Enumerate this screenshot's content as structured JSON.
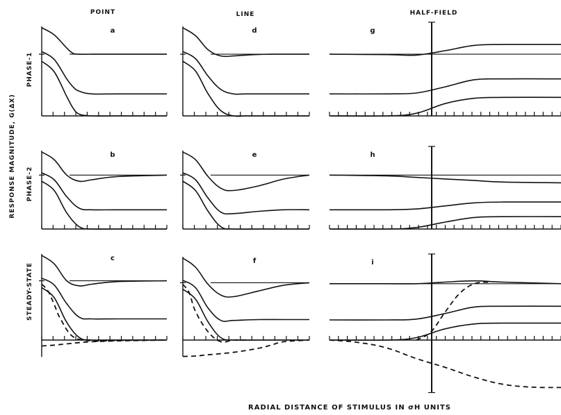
{
  "figure": {
    "ylabel": "RESPONSE MAGNITUDE, G(ΔX)",
    "xlabel": "RADIAL DISTANCE OF STIMULUS IN σH UNITS",
    "columns": [
      "POINT",
      "LINE",
      "HALF-FIELD"
    ],
    "rows": [
      "PHASE-1",
      "PHASE-2",
      "STEADY-STATE"
    ]
  },
  "chart_data": {
    "type": "line",
    "title": "",
    "xlabel": "RADIAL DISTANCE OF STIMULUS IN σH UNITS",
    "ylabel": "RESPONSE MAGNITUDE, G(ΔX)",
    "grid": false,
    "note": "3x3 grid of small-multiple panels (a-i). Each panel: three vertically offset response profiles with a horizontal reference level; tick-marked baseline; unlabeled ticks. Values are relative response magnitudes estimated in panel units (0 = lower baseline). Half-field panels are centred at the stimulus edge (x = 0) with a vertical axis through it.",
    "panels": [
      {
        "letter": "a",
        "row": "PHASE-1",
        "column": "POINT",
        "xlim": [
          0,
          10
        ],
        "ylim": [
          0,
          10
        ],
        "reference_level": 7.0,
        "series": [
          {
            "x": [
              0,
              1,
              2,
              2.5,
              3,
              4,
              6,
              10
            ],
            "y": [
              10,
              9.2,
              7.7,
              7.1,
              7.0,
              7.0,
              7.0,
              7.0
            ]
          },
          {
            "x": [
              0,
              1,
              2,
              2.5,
              3,
              4,
              6,
              10
            ],
            "y": [
              7.3,
              6.4,
              4.2,
              3.3,
              2.8,
              2.5,
              2.5,
              2.5
            ]
          },
          {
            "x": [
              0,
              1,
              2,
              2.5,
              3,
              4,
              6,
              10
            ],
            "y": [
              6.2,
              5.0,
              2.2,
              0.9,
              0.2,
              0,
              0,
              0
            ]
          }
        ]
      },
      {
        "letter": "d",
        "row": "PHASE-1",
        "column": "LINE",
        "xlim": [
          0,
          10
        ],
        "ylim": [
          0,
          10
        ],
        "reference_level": 7.0,
        "series": [
          {
            "x": [
              0,
              1,
              2,
              3,
              4,
              5,
              7,
              10
            ],
            "y": [
              10,
              9.1,
              7.5,
              6.8,
              6.8,
              6.9,
              7.0,
              7.0
            ]
          },
          {
            "x": [
              0,
              1,
              2,
              3,
              4,
              5,
              7,
              10
            ],
            "y": [
              7.3,
              6.5,
              4.5,
              3.0,
              2.5,
              2.5,
              2.5,
              2.5
            ]
          },
          {
            "x": [
              0,
              1,
              2,
              3,
              4,
              5,
              7,
              10
            ],
            "y": [
              6.2,
              5.1,
              2.5,
              0.6,
              0,
              0,
              0,
              0
            ]
          }
        ]
      },
      {
        "letter": "g",
        "row": "PHASE-1",
        "column": "HALF-FIELD",
        "xlim": [
          -8,
          8
        ],
        "ylim": [
          0,
          10
        ],
        "reference_level": 7.0,
        "series": [
          {
            "x": [
              -8,
              -4,
              -2,
              0,
              2,
              4,
              8
            ],
            "y": [
              7.0,
              6.95,
              6.9,
              7.4,
              8.0,
              8.1,
              8.1
            ]
          },
          {
            "x": [
              -8,
              -4,
              -2,
              0,
              2,
              4,
              8
            ],
            "y": [
              2.5,
              2.5,
              2.6,
              3.3,
              4.1,
              4.2,
              4.2
            ]
          },
          {
            "x": [
              -8,
              -4,
              -2,
              0,
              2,
              4,
              8
            ],
            "y": [
              0,
              0,
              0.3,
              1.4,
              2.0,
              2.1,
              2.1
            ]
          }
        ]
      },
      {
        "letter": "b",
        "row": "PHASE-2",
        "column": "POINT",
        "xlim": [
          0,
          10
        ],
        "ylim": [
          0,
          10
        ],
        "reference_level": 7.0,
        "series": [
          {
            "x": [
              0,
              1,
              2,
              3,
              4,
              6,
              10
            ],
            "y": [
              10,
              9.0,
              7.0,
              6.2,
              6.4,
              6.8,
              7.0
            ]
          },
          {
            "x": [
              0,
              1,
              2,
              3,
              4,
              6,
              10
            ],
            "y": [
              7.3,
              6.4,
              4.2,
              2.7,
              2.5,
              2.5,
              2.5
            ]
          },
          {
            "x": [
              0,
              1,
              2,
              3,
              4,
              6,
              10
            ],
            "y": [
              6.2,
              5.0,
              2.1,
              0.3,
              0,
              0,
              0
            ]
          }
        ]
      },
      {
        "letter": "e",
        "row": "PHASE-2",
        "column": "LINE",
        "xlim": [
          0,
          10
        ],
        "ylim": [
          0,
          10
        ],
        "reference_level": 7.0,
        "series": [
          {
            "x": [
              0,
              1,
              2,
              3,
              4,
              6,
              8,
              10
            ],
            "y": [
              10,
              9.0,
              6.8,
              5.3,
              5.0,
              5.6,
              6.5,
              7.0
            ]
          },
          {
            "x": [
              0,
              1,
              2,
              3,
              4,
              6,
              8,
              10
            ],
            "y": [
              7.3,
              6.4,
              4.0,
              2.2,
              2.0,
              2.3,
              2.5,
              2.5
            ]
          },
          {
            "x": [
              0,
              1,
              2,
              3,
              4,
              6,
              8,
              10
            ],
            "y": [
              6.2,
              5.0,
              2.3,
              0.3,
              0,
              0,
              0,
              0
            ]
          }
        ]
      },
      {
        "letter": "h",
        "row": "PHASE-2",
        "column": "HALF-FIELD",
        "xlim": [
          -8,
          8
        ],
        "ylim": [
          0,
          10
        ],
        "reference_level": 7.0,
        "series": [
          {
            "x": [
              -8,
              -4,
              -2,
              0,
              2,
              4,
              8
            ],
            "y": [
              7.0,
              6.9,
              6.7,
              6.5,
              6.3,
              6.1,
              6.0
            ]
          },
          {
            "x": [
              -8,
              -4,
              -2,
              0,
              2,
              4,
              8
            ],
            "y": [
              2.5,
              2.5,
              2.6,
              3.0,
              3.4,
              3.5,
              3.5
            ]
          },
          {
            "x": [
              -8,
              -4,
              -2,
              0,
              2,
              4,
              8
            ],
            "y": [
              0,
              0,
              0.2,
              0.9,
              1.5,
              1.6,
              1.6
            ]
          }
        ]
      },
      {
        "letter": "c",
        "row": "STEADY-STATE",
        "column": "POINT",
        "xlim": [
          0,
          10
        ],
        "ylim": [
          -2,
          10
        ],
        "reference_level": 7.0,
        "series": [
          {
            "x": [
              0,
              1,
              2,
              3,
              4,
              6,
              10
            ],
            "y": [
              10,
              9.0,
              7.0,
              6.4,
              6.6,
              6.9,
              7.0
            ]
          },
          {
            "x": [
              0,
              1,
              2,
              3,
              4,
              6,
              10
            ],
            "y": [
              7.3,
              6.5,
              4.3,
              2.7,
              2.5,
              2.5,
              2.5
            ]
          },
          {
            "x": [
              0,
              1,
              2,
              3,
              4,
              6,
              10
            ],
            "y": [
              6.2,
              5.0,
              2.1,
              0.3,
              0,
              0,
              0
            ]
          }
        ],
        "dashed": [
          {
            "x": [
              0,
              0.5,
              1,
              1.5,
              2.5,
              4,
              6,
              10
            ],
            "y": [
              6.6,
              5.8,
              4.2,
              2.5,
              0.4,
              -0.1,
              -0.05,
              0
            ]
          },
          {
            "x": [
              0,
              1,
              2,
              3,
              4,
              6,
              8,
              10
            ],
            "y": [
              -0.7,
              -0.6,
              -0.45,
              -0.3,
              -0.2,
              -0.1,
              -0.05,
              0
            ]
          }
        ]
      },
      {
        "letter": "f",
        "row": "STEADY-STATE",
        "column": "LINE",
        "xlim": [
          0,
          10
        ],
        "ylim": [
          -2,
          10
        ],
        "reference_level": 7.0,
        "series": [
          {
            "x": [
              0,
              1,
              2,
              3,
              4,
              6,
              8,
              10
            ],
            "y": [
              10,
              8.9,
              6.8,
              5.5,
              5.3,
              6.0,
              6.7,
              7.0
            ]
          },
          {
            "x": [
              0,
              1,
              2,
              3,
              4,
              6,
              8,
              10
            ],
            "y": [
              7.3,
              6.4,
              3.9,
              2.4,
              2.4,
              2.5,
              2.5,
              2.5
            ]
          },
          {
            "x": [
              0,
              1,
              2,
              3,
              4,
              6,
              8,
              10
            ],
            "y": [
              6.2,
              5.0,
              2.2,
              0.3,
              0,
              0,
              0,
              0
            ]
          }
        ],
        "dashed": [
          {
            "x": [
              0,
              0.5,
              1,
              2,
              3,
              4,
              5
            ],
            "y": [
              6.8,
              5.8,
              3.5,
              1.0,
              -0.2,
              0,
              0
            ]
          },
          {
            "x": [
              0,
              1,
              2,
              4,
              6,
              7,
              8,
              10
            ],
            "y": [
              -2.0,
              -1.95,
              -1.8,
              -1.5,
              -1.0,
              -0.6,
              -0.2,
              0
            ]
          }
        ]
      },
      {
        "letter": "i",
        "row": "STEADY-STATE",
        "column": "HALF-FIELD",
        "xlim": [
          -8,
          8
        ],
        "ylim": [
          -6,
          10
        ],
        "reference_level": 7.0,
        "series": [
          {
            "x": [
              -8,
              -4,
              -2,
              0,
              2,
              4,
              8
            ],
            "y": [
              7.0,
              7.0,
              7.0,
              7.2,
              7.35,
              7.2,
              7.0
            ]
          },
          {
            "x": [
              -8,
              -4,
              -2,
              0,
              2,
              4,
              8
            ],
            "y": [
              2.5,
              2.5,
              2.6,
              3.3,
              4.1,
              4.2,
              4.2
            ]
          },
          {
            "x": [
              -8,
              -4,
              -2,
              0,
              2,
              4,
              8
            ],
            "y": [
              0,
              0,
              0.3,
              1.4,
              2.0,
              2.1,
              2.1
            ]
          }
        ],
        "dashed": [
          {
            "x": [
              -2,
              -1,
              0,
              1,
              2,
              3
            ],
            "y": [
              0,
              1.0,
              3.5,
              5.8,
              7.0,
              7.2
            ]
          },
          {
            "x": [
              -8,
              -6,
              -4,
              -2,
              0,
              2,
              4,
              6,
              8
            ],
            "y": [
              0,
              -0.3,
              -1.0,
              -2.3,
              -3.4,
              -4.6,
              -5.5,
              -5.85,
              -5.9
            ]
          }
        ]
      }
    ]
  }
}
